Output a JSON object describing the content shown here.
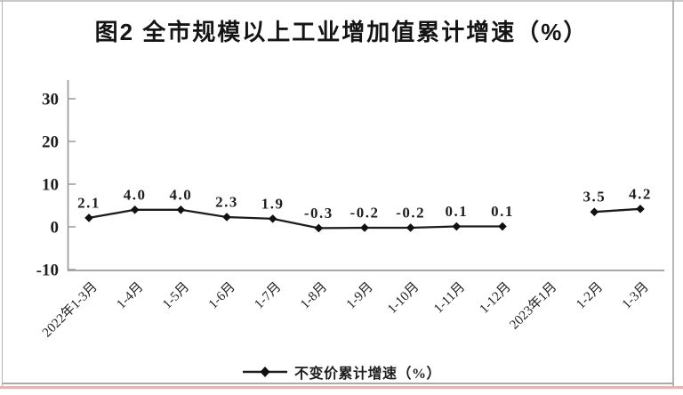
{
  "title": "图2 全市规模以上工业增加值累计增速（%）",
  "legend": {
    "label": "不变价累计增速（%）",
    "marker": "diamond-line"
  },
  "colors": {
    "line": "#1c1c1c",
    "marker": "#111111",
    "axis": "#9b9b9b",
    "text": "#1e1e1e",
    "border": "#b5b5b5",
    "bottom_accent": "#eab4ae"
  },
  "chart_data": {
    "type": "line",
    "title": "图2 全市规模以上工业增加值累计增速（%）",
    "categories": [
      "2022年1-3月",
      "1-4月",
      "1-5月",
      "1-6月",
      "1-7月",
      "1-8月",
      "1-9月",
      "1-10月",
      "1-11月",
      "1-12月",
      "2023年1月",
      "1-2月",
      "1-3月"
    ],
    "series": [
      {
        "name": "不变价累计增速（%）",
        "values": [
          2.1,
          4.0,
          4.0,
          2.3,
          1.9,
          -0.3,
          -0.2,
          -0.2,
          0.1,
          0.1,
          null,
          3.5,
          4.2
        ]
      }
    ],
    "data_labels": [
      "2.1",
      "4.0",
      "4.0",
      "2.3",
      "1.9",
      "-0.3",
      "-0.2",
      "-0.2",
      "0.1",
      "0.1",
      "",
      "3.5",
      "4.2"
    ],
    "xlabel": "",
    "ylabel": "",
    "y_ticks": [
      30,
      20,
      10,
      0,
      -10
    ],
    "ylim": [
      -10,
      34.5
    ],
    "grid": false,
    "legend_position": "bottom",
    "marker": "diamond",
    "x_tick_label_rotation": 45
  }
}
